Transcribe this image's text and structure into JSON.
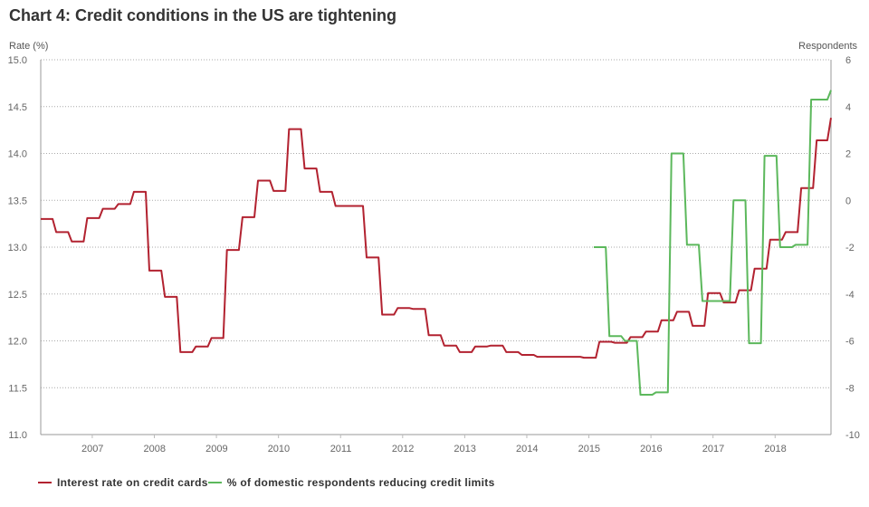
{
  "chart_data": {
    "type": "line",
    "title": "Chart 4: Credit conditions in the US are tightening",
    "xlabel": "",
    "ylabel": "Rate (%)",
    "y2label": "Respondents",
    "ylim": [
      11.0,
      15.0
    ],
    "y2lim": [
      -10,
      6
    ],
    "xlim": [
      2006.17,
      2018.9
    ],
    "yticks": [
      "15.0",
      "14.5",
      "14.0",
      "13.5",
      "13.0",
      "12.5",
      "12.0",
      "11.5",
      "11.0"
    ],
    "yticks_values": [
      15.0,
      14.5,
      14.0,
      13.5,
      13.0,
      12.5,
      12.0,
      11.5,
      11.0
    ],
    "y2ticks": [
      "6",
      "4",
      "2",
      "0",
      "-2",
      "-4",
      "-6",
      "-8",
      "-10"
    ],
    "y2ticks_values": [
      6,
      4,
      2,
      0,
      -2,
      -4,
      -6,
      -8,
      -10
    ],
    "xticks": [
      "2007",
      "2008",
      "2009",
      "2010",
      "2011",
      "2012",
      "2013",
      "2014",
      "2015",
      "2016",
      "2017",
      "2018"
    ],
    "xticks_values": [
      2007,
      2008,
      2009,
      2010,
      2011,
      2012,
      2013,
      2014,
      2015,
      2016,
      2017,
      2018
    ],
    "grid": true,
    "legend_position": "bottom-left",
    "series": [
      {
        "name": "Interest rate on credit cards",
        "axis": "left",
        "color": "#b22230",
        "x": [
          2006.17,
          2006.42,
          2006.67,
          2006.92,
          2007.17,
          2007.42,
          2007.67,
          2007.92,
          2008.17,
          2008.42,
          2008.67,
          2008.92,
          2009.17,
          2009.42,
          2009.67,
          2009.92,
          2010.17,
          2010.42,
          2010.67,
          2010.92,
          2011.17,
          2011.42,
          2011.67,
          2011.92,
          2012.17,
          2012.42,
          2012.67,
          2012.92,
          2013.17,
          2013.42,
          2013.67,
          2013.92,
          2014.17,
          2014.42,
          2014.67,
          2014.92,
          2015.17,
          2015.42,
          2015.67,
          2015.92,
          2016.17,
          2016.42,
          2016.67,
          2016.92,
          2017.17,
          2017.42,
          2017.67,
          2017.92,
          2018.17,
          2018.42,
          2018.67,
          2018.9
        ],
        "values": [
          13.3,
          13.16,
          13.06,
          13.31,
          13.41,
          13.46,
          13.59,
          12.75,
          12.47,
          11.88,
          11.94,
          12.03,
          12.97,
          13.32,
          13.71,
          13.6,
          14.26,
          13.84,
          13.59,
          13.44,
          13.44,
          12.89,
          12.28,
          12.35,
          12.34,
          12.06,
          11.95,
          11.88,
          11.94,
          11.95,
          11.88,
          11.85,
          11.83,
          11.83,
          11.83,
          11.82,
          11.99,
          11.98,
          12.04,
          12.1,
          12.22,
          12.31,
          12.16,
          12.51,
          12.41,
          12.54,
          12.77,
          13.08,
          13.16,
          13.63,
          14.14,
          14.38
        ]
      },
      {
        "name": "% of domestic respondents reducing credit limits",
        "axis": "right",
        "color": "#5cb85c",
        "x": [
          2015.08,
          2015.33,
          2015.58,
          2015.83,
          2016.08,
          2016.33,
          2016.58,
          2016.83,
          2017.08,
          2017.33,
          2017.58,
          2017.83,
          2018.08,
          2018.33,
          2018.58,
          2018.9
        ],
        "values": [
          -2.0,
          -5.8,
          -6.0,
          -8.3,
          -8.2,
          2.0,
          -1.9,
          -4.3,
          -4.3,
          0.0,
          -6.1,
          1.9,
          -2.0,
          -1.9,
          4.3,
          4.7
        ]
      }
    ]
  }
}
